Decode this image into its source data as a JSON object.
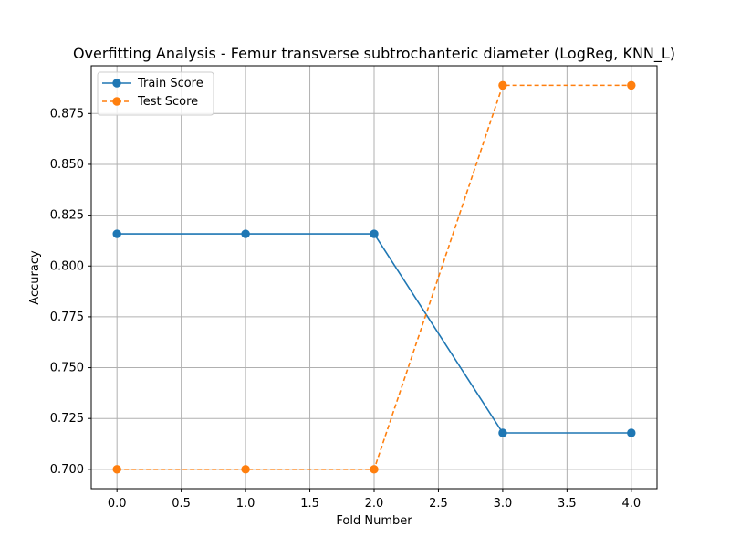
{
  "chart_data": {
    "type": "line",
    "title": "Overfitting Analysis - Femur transverse subtrochanteric diameter (LogReg, KNN_L)",
    "xlabel": "Fold Number",
    "ylabel": "Accuracy",
    "x": [
      0,
      1,
      2,
      3,
      4
    ],
    "xlim": [
      -0.2,
      4.2
    ],
    "ylim": [
      0.6905,
      0.8985
    ],
    "xticks": [
      "0.0",
      "0.5",
      "1.0",
      "1.5",
      "2.0",
      "2.5",
      "3.0",
      "3.5",
      "4.0"
    ],
    "yticks": [
      "0.700",
      "0.725",
      "0.750",
      "0.775",
      "0.800",
      "0.825",
      "0.850",
      "0.875"
    ],
    "grid": true,
    "legend_position": "top-left",
    "series": [
      {
        "name": "Train Score",
        "values": [
          0.8158,
          0.8158,
          0.8158,
          0.7179,
          0.7179
        ],
        "color": "#1f77b4",
        "line_style": "solid",
        "marker": "circle"
      },
      {
        "name": "Test Score",
        "values": [
          0.7,
          0.7,
          0.7,
          0.8889,
          0.8889
        ],
        "color": "#ff7f0e",
        "line_style": "dashed",
        "marker": "circle"
      }
    ]
  }
}
